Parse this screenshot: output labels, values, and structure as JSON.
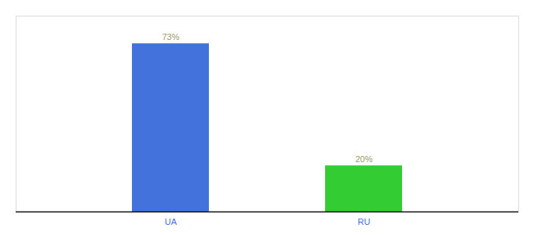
{
  "chart_data": {
    "type": "bar",
    "categories": [
      "UA",
      "RU"
    ],
    "values": [
      73,
      20
    ],
    "colors": [
      "#4472DD",
      "#33CC33"
    ],
    "value_labels": [
      "73%",
      "20%"
    ],
    "data_labels": true,
    "ylim": [
      0,
      85
    ],
    "grid": false,
    "tick_labels": "x"
  }
}
